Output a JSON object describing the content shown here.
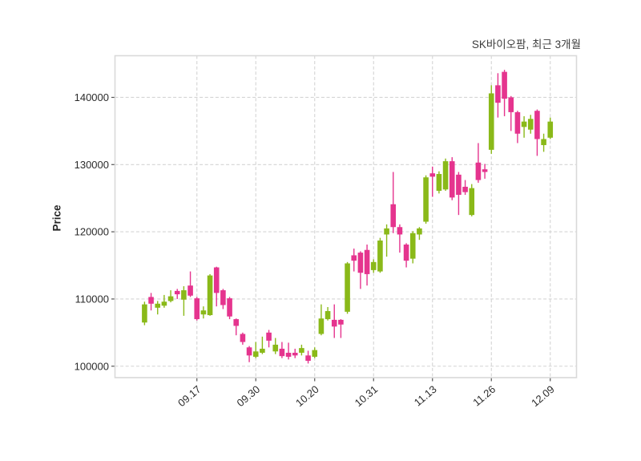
{
  "title": "SK바이오팜, 최근 3개월",
  "y_axis": {
    "label": "Price",
    "tick_labels": [
      "100000",
      "110000",
      "120000",
      "130000",
      "140000"
    ]
  },
  "x_axis": {
    "tick_labels": [
      "09.17",
      "09.30",
      "10.20",
      "10.31",
      "11.13",
      "11.26",
      "12.09"
    ]
  },
  "colors": {
    "up": "#8ab919",
    "down": "#e5348e",
    "grid": "#d4d4d4",
    "border": "#d9d9d9",
    "tick_text": "#2b2b2b",
    "title_text": "#3c3c3c",
    "background": "#ffffff"
  },
  "chart_data": {
    "type": "candlestick",
    "title": "SK바이오팜, 최근 3개월",
    "xlabel": "",
    "ylabel": "Price",
    "ylim": [
      98300,
      146200
    ],
    "grid": "dashed, both axes",
    "legend": "none",
    "y_ticks": [
      100000,
      110000,
      120000,
      130000,
      140000
    ],
    "x_tick_labels": [
      "09.17",
      "09.30",
      "10.20",
      "10.31",
      "11.13",
      "11.26",
      "12.09"
    ],
    "x_tick_indices": [
      8,
      17,
      26,
      35,
      44,
      53,
      62
    ],
    "up_color": "#8ab919",
    "down_color": "#e5348e",
    "candles_format": [
      "open",
      "high",
      "low",
      "close"
    ],
    "candles": [
      [
        106500,
        109600,
        106100,
        109200
      ],
      [
        110300,
        110900,
        108300,
        109300
      ],
      [
        108700,
        109700,
        107700,
        109300
      ],
      [
        109000,
        110600,
        108700,
        109600
      ],
      [
        109700,
        111300,
        109500,
        110400
      ],
      [
        111200,
        111500,
        110000,
        110700
      ],
      [
        109900,
        111900,
        107500,
        111300
      ],
      [
        112000,
        114100,
        110300,
        110500
      ],
      [
        110100,
        110300,
        106800,
        107000
      ],
      [
        107700,
        108900,
        107100,
        108300
      ],
      [
        107600,
        113700,
        107500,
        113500
      ],
      [
        114700,
        114800,
        108900,
        110900
      ],
      [
        111300,
        111500,
        108500,
        109100
      ],
      [
        110100,
        110300,
        107000,
        107400
      ],
      [
        107000,
        107100,
        104600,
        106000
      ],
      [
        104800,
        105000,
        103200,
        103600
      ],
      [
        102800,
        103000,
        100600,
        101600
      ],
      [
        101400,
        103600,
        101200,
        102200
      ],
      [
        102000,
        104400,
        101800,
        102600
      ],
      [
        105000,
        105400,
        102800,
        103800
      ],
      [
        102200,
        104200,
        101800,
        103200
      ],
      [
        102600,
        103600,
        101200,
        101500
      ],
      [
        102000,
        103500,
        101000,
        101400
      ],
      [
        102000,
        102600,
        101200,
        101600
      ],
      [
        102000,
        103200,
        101600,
        102700
      ],
      [
        101600,
        102300,
        100400,
        100800
      ],
      [
        101400,
        102800,
        101200,
        102400
      ],
      [
        104800,
        109200,
        104600,
        107100
      ],
      [
        107000,
        108800,
        106800,
        108200
      ],
      [
        106900,
        109200,
        104200,
        105900
      ],
      [
        106900,
        107000,
        104200,
        106200
      ],
      [
        108100,
        115500,
        107800,
        115300
      ],
      [
        116500,
        117500,
        114100,
        115700
      ],
      [
        116900,
        117100,
        111500,
        113900
      ],
      [
        117300,
        118100,
        112000,
        113700
      ],
      [
        114300,
        115900,
        113900,
        115500
      ],
      [
        114100,
        119100,
        113900,
        118700
      ],
      [
        119600,
        121100,
        116300,
        120500
      ],
      [
        124100,
        128900,
        119800,
        120700
      ],
      [
        120700,
        121100,
        116900,
        119600
      ],
      [
        118100,
        118300,
        114700,
        115700
      ],
      [
        116000,
        120100,
        115300,
        119800
      ],
      [
        119600,
        120700,
        118800,
        120500
      ],
      [
        121500,
        128400,
        121200,
        128100
      ],
      [
        128700,
        129700,
        125200,
        128200
      ],
      [
        126100,
        129000,
        125700,
        128600
      ],
      [
        126300,
        130900,
        126100,
        130500
      ],
      [
        130500,
        131100,
        124700,
        125100
      ],
      [
        128500,
        128900,
        122500,
        125500
      ],
      [
        126700,
        127700,
        125500,
        125900
      ],
      [
        122500,
        127100,
        122300,
        126500
      ],
      [
        130300,
        133200,
        127300,
        127700
      ],
      [
        129300,
        130100,
        127900,
        128900
      ],
      [
        132200,
        141800,
        131600,
        140600
      ],
      [
        141800,
        143600,
        137000,
        139200
      ],
      [
        143800,
        144100,
        137200,
        139800
      ],
      [
        140000,
        140200,
        135000,
        137800
      ],
      [
        137800,
        138000,
        133200,
        134600
      ],
      [
        135600,
        137200,
        134000,
        136400
      ],
      [
        135200,
        137400,
        134600,
        136800
      ],
      [
        138000,
        138200,
        131300,
        133800
      ],
      [
        132900,
        134600,
        131900,
        133800
      ],
      [
        134000,
        137000,
        133800,
        136400
      ]
    ]
  }
}
